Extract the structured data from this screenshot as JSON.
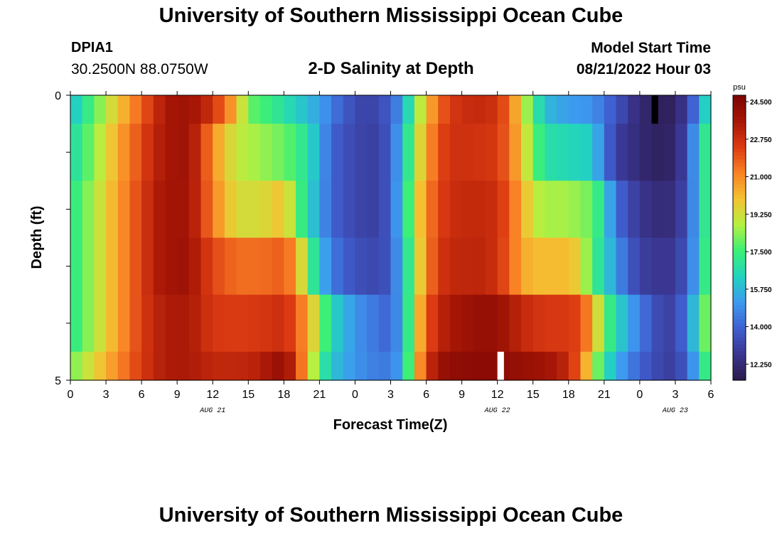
{
  "header": {
    "title": "University of Southern Mississippi Ocean Cube",
    "station_id": "DPIA1",
    "coords": "30.2500N  88.0750W",
    "plot_title": "2-D Salinity at Depth",
    "model_start_label": "Model Start Time",
    "model_start_value": "08/21/2022 Hour 03"
  },
  "footer": {
    "title": "University of Southern Mississippi Ocean Cube"
  },
  "colors": {
    "scale": [
      "#2b1a4a",
      "#3a3590",
      "#3f5fd0",
      "#3d9af0",
      "#22d3c0",
      "#3cf075",
      "#b6f040",
      "#f4c232",
      "#f98125",
      "#dc3b12",
      "#a61606",
      "#7a0403"
    ],
    "missing_black": "#000000",
    "missing_white": "#ffffff"
  },
  "chart_data": {
    "type": "heatmap",
    "xlabel": "Forecast Time(Z)",
    "ylabel": "Depth (ft)",
    "x_tick_labels": [
      "0",
      "3",
      "6",
      "9",
      "12",
      "15",
      "18",
      "21",
      "0",
      "3",
      "6",
      "9",
      "12",
      "15",
      "18",
      "21",
      "0",
      "3",
      "6"
    ],
    "date_labels": [
      {
        "text": "AUG 21",
        "hour": 12
      },
      {
        "text": "AUG 22",
        "hour": 36
      },
      {
        "text": "AUG 23",
        "hour": 51
      }
    ],
    "y_tick_labels": [
      "0",
      "5"
    ],
    "xlim": [
      0,
      54
    ],
    "ylim": [
      0,
      5
    ],
    "time_step_hours": 1,
    "depth_levels": 5,
    "colorbar": {
      "unit": "psu",
      "min": 11.5,
      "max": 24.8,
      "tick_values": [
        24.5,
        22.75,
        21.0,
        19.25,
        17.5,
        15.75,
        14.0,
        12.25
      ],
      "tick_labels": [
        "24.500",
        "22.750",
        "21.000",
        "19.250",
        "17.500",
        "15.750",
        "14.000",
        "12.250"
      ]
    },
    "rows": [
      {
        "depth_range": [
          0,
          0.5
        ],
        "anchors": [
          [
            0,
            15.8
          ],
          [
            2,
            17.8
          ],
          [
            4,
            19.8
          ],
          [
            6,
            21.8
          ],
          [
            7,
            22.6
          ],
          [
            8,
            23.6
          ],
          [
            10,
            23.8
          ],
          [
            11,
            23.3
          ],
          [
            12,
            22.7
          ],
          [
            13,
            21.5
          ],
          [
            14,
            20.2
          ],
          [
            15,
            18.0
          ],
          [
            17,
            17.3
          ],
          [
            19,
            16.3
          ],
          [
            21,
            15.3
          ],
          [
            23,
            13.8
          ],
          [
            25,
            13.0
          ],
          [
            27,
            13.8
          ],
          [
            28,
            15.3
          ],
          [
            29,
            17.8
          ],
          [
            30,
            20.0
          ],
          [
            31,
            21.5
          ],
          [
            32,
            22.5
          ],
          [
            34,
            23.0
          ],
          [
            36,
            22.7
          ],
          [
            37,
            21.5
          ],
          [
            38,
            19.5
          ],
          [
            39,
            17.5
          ],
          [
            40,
            15.8
          ],
          [
            42,
            15.2
          ],
          [
            44,
            15.0
          ],
          [
            46,
            13.6
          ],
          [
            48,
            12.2
          ],
          [
            50,
            11.7
          ],
          [
            51,
            12.0
          ],
          [
            52,
            13.0
          ],
          [
            53,
            15.0
          ],
          [
            54,
            17.5
          ]
        ]
      },
      {
        "depth_range": [
          0.5,
          1.5
        ],
        "anchors": [
          [
            0,
            16.5
          ],
          [
            2,
            18.3
          ],
          [
            4,
            20.4
          ],
          [
            6,
            22.2
          ],
          [
            7,
            23.0
          ],
          [
            8,
            23.6
          ],
          [
            10,
            23.8
          ],
          [
            11,
            22.6
          ],
          [
            12,
            21.0
          ],
          [
            13,
            19.8
          ],
          [
            14,
            19.0
          ],
          [
            16,
            18.5
          ],
          [
            18,
            18.0
          ],
          [
            19,
            17.5
          ],
          [
            20,
            16.8
          ],
          [
            21,
            15.4
          ],
          [
            22,
            14.0
          ],
          [
            24,
            13.2
          ],
          [
            26,
            13.0
          ],
          [
            27,
            14.0
          ],
          [
            28,
            15.8
          ],
          [
            29,
            18.5
          ],
          [
            30,
            20.5
          ],
          [
            31,
            22.0
          ],
          [
            32,
            22.7
          ],
          [
            34,
            22.7
          ],
          [
            36,
            22.5
          ],
          [
            37,
            21.5
          ],
          [
            38,
            20.0
          ],
          [
            39,
            18.0
          ],
          [
            40,
            16.8
          ],
          [
            42,
            16.5
          ],
          [
            44,
            16.2
          ],
          [
            45,
            14.5
          ],
          [
            46,
            13.0
          ],
          [
            48,
            12.2
          ],
          [
            50,
            11.8
          ],
          [
            51,
            12.2
          ],
          [
            52,
            13.4
          ],
          [
            53,
            16.2
          ],
          [
            54,
            18.0
          ]
        ]
      },
      {
        "depth_range": [
          1.5,
          2.5
        ],
        "anchors": [
          [
            0,
            17.0
          ],
          [
            2,
            18.7
          ],
          [
            4,
            20.6
          ],
          [
            6,
            22.4
          ],
          [
            7,
            23.2
          ],
          [
            8,
            23.7
          ],
          [
            10,
            23.7
          ],
          [
            11,
            22.6
          ],
          [
            12,
            21.2
          ],
          [
            13,
            20.2
          ],
          [
            14,
            19.3
          ],
          [
            16,
            19.3
          ],
          [
            18,
            20.0
          ],
          [
            19,
            18.2
          ],
          [
            20,
            16.5
          ],
          [
            21,
            15.3
          ],
          [
            22,
            14.0
          ],
          [
            24,
            13.2
          ],
          [
            26,
            13.0
          ],
          [
            27,
            14.0
          ],
          [
            28,
            16.0
          ],
          [
            29,
            19.0
          ],
          [
            30,
            21.0
          ],
          [
            31,
            22.2
          ],
          [
            32,
            22.8
          ],
          [
            34,
            23.0
          ],
          [
            36,
            22.8
          ],
          [
            37,
            21.8
          ],
          [
            38,
            20.5
          ],
          [
            39,
            19.0
          ],
          [
            40,
            18.6
          ],
          [
            42,
            18.6
          ],
          [
            44,
            18.0
          ],
          [
            45,
            16.5
          ],
          [
            46,
            14.2
          ],
          [
            48,
            12.7
          ],
          [
            50,
            12.2
          ],
          [
            51,
            12.5
          ],
          [
            52,
            13.5
          ],
          [
            53,
            16.0
          ],
          [
            54,
            18.2
          ]
        ]
      },
      {
        "depth_range": [
          2.5,
          3.5
        ],
        "anchors": [
          [
            0,
            17.0
          ],
          [
            2,
            18.7
          ],
          [
            4,
            20.6
          ],
          [
            6,
            22.4
          ],
          [
            7,
            23.2
          ],
          [
            8,
            23.7
          ],
          [
            10,
            23.8
          ],
          [
            11,
            23.0
          ],
          [
            12,
            22.2
          ],
          [
            14,
            21.5
          ],
          [
            16,
            21.5
          ],
          [
            18,
            21.8
          ],
          [
            19,
            20.8
          ],
          [
            20,
            18.0
          ],
          [
            21,
            16.0
          ],
          [
            22,
            14.5
          ],
          [
            24,
            13.5
          ],
          [
            26,
            13.2
          ],
          [
            27,
            13.8
          ],
          [
            28,
            15.8
          ],
          [
            29,
            18.5
          ],
          [
            30,
            21.0
          ],
          [
            31,
            22.5
          ],
          [
            32,
            23.0
          ],
          [
            35,
            23.1
          ],
          [
            36,
            22.6
          ],
          [
            37,
            21.8
          ],
          [
            38,
            20.5
          ],
          [
            39,
            20.1
          ],
          [
            42,
            20.1
          ],
          [
            43,
            19.5
          ],
          [
            44,
            17.5
          ],
          [
            45,
            16.5
          ],
          [
            46,
            15.0
          ],
          [
            48,
            13.0
          ],
          [
            50,
            12.7
          ],
          [
            51,
            12.8
          ],
          [
            52,
            13.8
          ],
          [
            53,
            16.0
          ],
          [
            54,
            18.5
          ]
        ]
      },
      {
        "depth_range": [
          3.5,
          4.5
        ],
        "anchors": [
          [
            0,
            17.0
          ],
          [
            2,
            18.7
          ],
          [
            4,
            20.6
          ],
          [
            6,
            22.4
          ],
          [
            7,
            23.0
          ],
          [
            8,
            23.4
          ],
          [
            10,
            23.5
          ],
          [
            12,
            22.5
          ],
          [
            14,
            22.4
          ],
          [
            16,
            22.5
          ],
          [
            18,
            22.8
          ],
          [
            19,
            22.0
          ],
          [
            20,
            20.5
          ],
          [
            21,
            18.5
          ],
          [
            22,
            16.5
          ],
          [
            24,
            15.0
          ],
          [
            26,
            14.3
          ],
          [
            27,
            14.0
          ],
          [
            28,
            15.5
          ],
          [
            29,
            19.0
          ],
          [
            30,
            21.8
          ],
          [
            31,
            23.0
          ],
          [
            32,
            23.5
          ],
          [
            34,
            24.0
          ],
          [
            36,
            24.0
          ],
          [
            37,
            23.5
          ],
          [
            38,
            23.0
          ],
          [
            40,
            22.5
          ],
          [
            42,
            22.5
          ],
          [
            43,
            22.2
          ],
          [
            44,
            20.5
          ],
          [
            45,
            18.0
          ],
          [
            46,
            16.5
          ],
          [
            48,
            14.5
          ],
          [
            50,
            13.0
          ],
          [
            51,
            13.2
          ],
          [
            52,
            14.5
          ],
          [
            53,
            17.0
          ],
          [
            54,
            19.0
          ]
        ]
      },
      {
        "depth_range": [
          4.5,
          5
        ],
        "anchors": [
          [
            0,
            18.0
          ],
          [
            2,
            19.5
          ],
          [
            4,
            21.0
          ],
          [
            6,
            22.5
          ],
          [
            7,
            23.0
          ],
          [
            8,
            23.4
          ],
          [
            10,
            23.5
          ],
          [
            12,
            23.0
          ],
          [
            14,
            23.0
          ],
          [
            16,
            23.2
          ],
          [
            17,
            23.8
          ],
          [
            18,
            24.0
          ],
          [
            19,
            22.8
          ],
          [
            20,
            20.0
          ],
          [
            21,
            17.5
          ],
          [
            22,
            16.0
          ],
          [
            24,
            15.0
          ],
          [
            26,
            14.5
          ],
          [
            27,
            14.5
          ],
          [
            28,
            15.5
          ],
          [
            29,
            19.5
          ],
          [
            30,
            22.5
          ],
          [
            31,
            23.8
          ],
          [
            32,
            24.2
          ],
          [
            34,
            24.3
          ],
          [
            36,
            24.3
          ],
          [
            38,
            24.0
          ],
          [
            40,
            23.8
          ],
          [
            42,
            23.0
          ],
          [
            43,
            21.5
          ],
          [
            44,
            19.0
          ],
          [
            45,
            17.0
          ],
          [
            46,
            15.5
          ],
          [
            48,
            14.0
          ],
          [
            50,
            13.0
          ],
          [
            51,
            13.0
          ],
          [
            52,
            14.0
          ],
          [
            53,
            16.0
          ],
          [
            54,
            18.5
          ]
        ]
      }
    ],
    "missing_cells": [
      {
        "x_hour": 49,
        "depth_range": [
          0,
          0.5
        ],
        "fill": "black"
      },
      {
        "x_hour": 36,
        "depth_range": [
          4.5,
          5
        ],
        "fill": "white"
      }
    ]
  }
}
